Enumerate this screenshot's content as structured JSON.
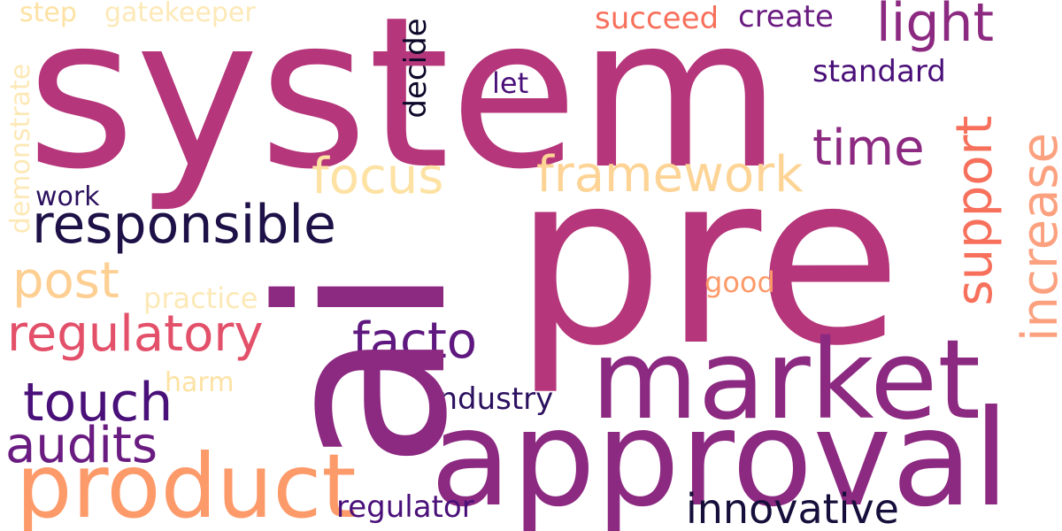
{
  "words": {
    "system": "system",
    "pre": "pre",
    "ai": "ai",
    "market": "market",
    "approval": "approval",
    "product": "product",
    "responsible": "responsible",
    "regulatory": "regulatory",
    "facto": "facto",
    "touch": "touch",
    "audits": "audits",
    "post": "post",
    "focus": "focus",
    "framework": "framework",
    "time": "time",
    "light": "light",
    "support": "support",
    "increase": "increase",
    "innovative": "innovative",
    "standard": "standard",
    "create": "create",
    "succeed": "succeed",
    "decide": "decide",
    "regulator": "regulator",
    "industry": "industry",
    "good": "good",
    "let": "let",
    "work": "work",
    "harm": "harm",
    "practice": "practice",
    "step": "step",
    "gatekeeper": "gatekeeper",
    "demonstrate": "demonstrate"
  },
  "colors": {
    "background": "#ffffff",
    "palette": [
      "#0d0829",
      "#1d1147",
      "#4a1079",
      "#8c2981",
      "#b5367a",
      "#e3506a",
      "#f7705c",
      "#fd9a6a",
      "#fecf92",
      "#fde9b7"
    ]
  }
}
